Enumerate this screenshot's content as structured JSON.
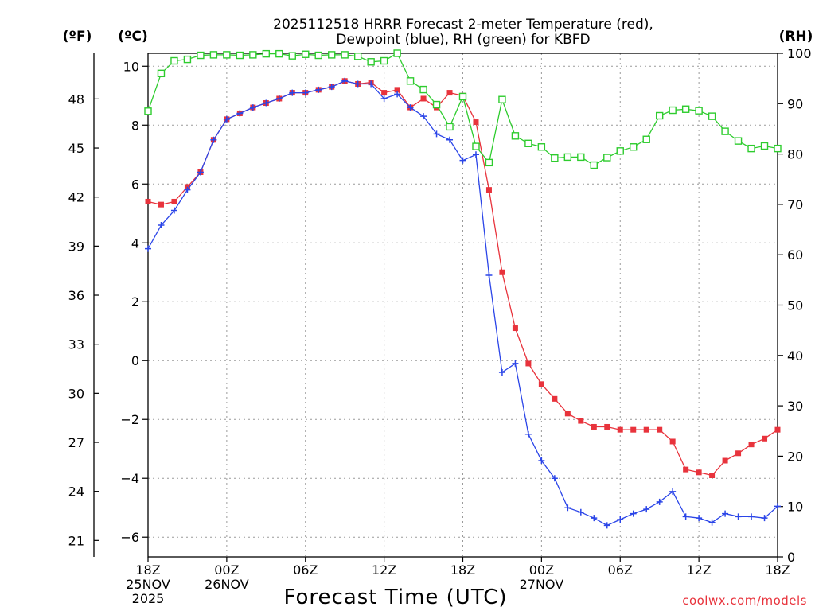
{
  "chart_data": {
    "type": "line",
    "title_line1": "2025112518 HRRR Forecast 2-meter Temperature (red),",
    "title_line2": "Dewpoint (blue), RH (green) for KBFD",
    "xlabel": "Forecast Time (UTC)",
    "credit": "coolwx.com/models",
    "units": {
      "f": "(ºF)",
      "c": "(ºC)",
      "rh": "(RH)"
    },
    "x_range": [
      0,
      48
    ],
    "y_celsius_range": [
      -6.67,
      10.44
    ],
    "y_rh_range": [
      0,
      100
    ],
    "x_ticks": [
      {
        "x": 0,
        "lines": [
          "18Z",
          "25NOV",
          "2025"
        ]
      },
      {
        "x": 6,
        "lines": [
          "00Z",
          "26NOV"
        ]
      },
      {
        "x": 12,
        "lines": [
          "06Z"
        ]
      },
      {
        "x": 18,
        "lines": [
          "12Z"
        ]
      },
      {
        "x": 24,
        "lines": [
          "18Z"
        ]
      },
      {
        "x": 30,
        "lines": [
          "00Z",
          "27NOV"
        ]
      },
      {
        "x": 36,
        "lines": [
          "06Z"
        ]
      },
      {
        "x": 42,
        "lines": [
          "12Z"
        ]
      },
      {
        "x": 48,
        "lines": [
          "18Z"
        ]
      }
    ],
    "c_ticks": [
      10,
      8,
      6,
      4,
      2,
      0,
      -2,
      -4,
      -6
    ],
    "c_tick_labels": [
      "10",
      "8",
      "6",
      "4",
      "2",
      "0",
      "−2",
      "−4",
      "−6"
    ],
    "f_ticks": [
      48,
      45,
      42,
      39,
      36,
      33,
      30,
      27,
      24,
      21
    ],
    "rh_ticks": [
      100,
      90,
      80,
      70,
      60,
      50,
      40,
      30,
      20,
      10,
      0
    ],
    "series": [
      {
        "name": "2-meter Temperature",
        "unit": "C",
        "color": "#e8333c",
        "marker": "square-filled",
        "values": [
          5.4,
          5.3,
          5.4,
          5.9,
          6.4,
          7.5,
          8.2,
          8.4,
          8.6,
          8.75,
          8.9,
          9.1,
          9.1,
          9.2,
          9.3,
          9.5,
          9.4,
          9.45,
          9.1,
          9.2,
          8.6,
          8.9,
          8.6,
          9.1,
          9.0,
          8.1,
          5.8,
          3.0,
          1.1,
          -0.1,
          -0.8,
          -1.3,
          -1.8,
          -2.05,
          -2.25,
          -2.25,
          -2.35,
          -2.35,
          -2.35,
          -2.35,
          -2.75,
          -3.7,
          -3.8,
          -3.9,
          -3.4,
          -3.15,
          -2.85,
          -2.65,
          -2.35
        ]
      },
      {
        "name": "Dewpoint",
        "unit": "C",
        "color": "#2b45e8",
        "marker": "plus",
        "values": [
          3.8,
          4.6,
          5.1,
          5.8,
          6.4,
          7.5,
          8.2,
          8.4,
          8.6,
          8.75,
          8.9,
          9.1,
          9.1,
          9.2,
          9.3,
          9.5,
          9.4,
          9.4,
          8.9,
          9.05,
          8.6,
          8.3,
          7.7,
          7.5,
          6.8,
          7.0,
          2.9,
          -0.4,
          -0.1,
          -2.5,
          -3.4,
          -4.0,
          -5.0,
          -5.15,
          -5.35,
          -5.6,
          -5.4,
          -5.2,
          -5.05,
          -4.8,
          -4.45,
          -5.3,
          -5.35,
          -5.5,
          -5.2,
          -5.3,
          -5.3,
          -5.35,
          -4.95
        ]
      },
      {
        "name": "RH",
        "unit": "%",
        "color": "#2ecc2e",
        "marker": "square-open",
        "values": [
          88.5,
          96,
          98.5,
          98.8,
          99.6,
          99.7,
          99.7,
          99.6,
          99.7,
          99.9,
          99.9,
          99.5,
          99.8,
          99.6,
          99.7,
          99.7,
          99.4,
          98.3,
          98.5,
          100,
          94.5,
          92.8,
          89.8,
          85.4,
          91.4,
          81.5,
          78.3,
          90.8,
          83.6,
          82.1,
          81.4,
          79.2,
          79.4,
          79.4,
          77.8,
          79.3,
          80.6,
          81.4,
          82.9,
          87.6,
          88.7,
          88.9,
          88.6,
          87.5,
          84.5,
          82.6,
          81.1,
          81.6,
          81.1
        ]
      }
    ]
  }
}
